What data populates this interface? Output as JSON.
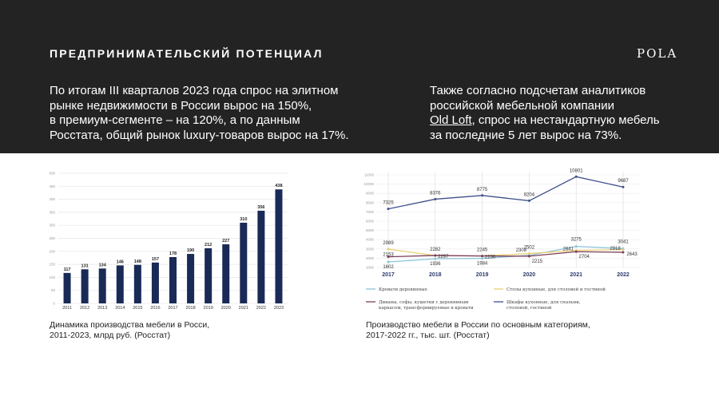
{
  "header": {
    "title": "ПРЕДПРИНИМАТЕЛЬСКИЙ ПОТЕНЦИАЛ",
    "logo": "POLA"
  },
  "intro": {
    "left_lines": [
      "По итогам III кварталов 2023 года спрос на элитном",
      "рынке недвижимости в России вырос на 150%,",
      "в премиум-сегменте – на 120%, а по данным",
      "Росстата, общий рынок luxury-товаров вырос на 17%."
    ],
    "right_line1": "Также согласно подсчетам аналитиков",
    "right_line2": "российской мебельной компании",
    "right_link": "Old Loft",
    "right_line3_rest": ", спрос на нестандартную мебель",
    "right_line4": "за последние 5 лет вырос на 73%."
  },
  "captions": {
    "left_line1": "Динамика производства мебели в Росси,",
    "left_line2": "2011-2023, млрд руб. (Росстат)",
    "right_line1": "Производство мебели в России по основным категориям,",
    "right_line2": "2017-2022 гг., тыс. шт. (Росстат)"
  },
  "colors": {
    "bar": "#1a2a57",
    "beds": "#8cc4dc",
    "tables": "#e9cf74",
    "sofas": "#7a3d5a",
    "wardrobes": "#3f4f8a"
  },
  "chart_data": [
    {
      "type": "bar",
      "title": "Динамика производства мебели в Росси, 2011-2023, млрд руб. (Росстат)",
      "categories": [
        "2011",
        "2012",
        "2013",
        "2014",
        "2015",
        "2016",
        "2017",
        "2018",
        "2019",
        "2020",
        "2021",
        "2022",
        "2023"
      ],
      "values": [
        117,
        131,
        134,
        146,
        148,
        157,
        178,
        190,
        212,
        227,
        310,
        356,
        438
      ],
      "ylim": [
        0,
        500
      ],
      "yticks": [
        0,
        50,
        100,
        150,
        200,
        250,
        300,
        350,
        400,
        450,
        500
      ],
      "xlabel": "",
      "ylabel": "",
      "grid": true
    },
    {
      "type": "line",
      "title": "Производство мебели в России по основным категориям, 2017-2022 гг., тыс. шт. (Росстат)",
      "x": [
        "2017",
        "2018",
        "2019",
        "2020",
        "2021",
        "2022"
      ],
      "ylim": [
        1000,
        11000
      ],
      "yticks": [
        1000,
        2000,
        3000,
        4000,
        5000,
        6000,
        7000,
        8000,
        9000,
        10000,
        11000
      ],
      "series": [
        {
          "name": "Кровати деревянные",
          "values": [
            1602,
            1936,
            1984,
            2308,
            3275,
            3041
          ],
          "labels": [
            "1602",
            "1936",
            "1984",
            "2308",
            "3275",
            "3041"
          ]
        },
        {
          "name": "Столы кухонные, для столовой и гостиной",
          "values": [
            2989,
            2282,
            2245,
            2502,
            2841,
            2918
          ],
          "labels": [
            "2989",
            "2282",
            "2245",
            "2502",
            "2841",
            "2918"
          ]
        },
        {
          "name": "Диваны, софы, кушетки с деревянным каркасом, трансформируемые в кровати",
          "values": [
            2153,
            2297,
            2236,
            2215,
            2704,
            2643
          ],
          "labels": [
            "2153",
            "2297",
            "2236",
            "2215",
            "2704",
            "2643"
          ]
        },
        {
          "name": "Шкафы кухонные, для спальни, столовой, гостиной",
          "values": [
            7325,
            8376,
            8775,
            8204,
            10801,
            9687
          ],
          "labels": [
            "7325",
            "8376",
            "8775",
            "8204",
            "10801",
            "9687"
          ]
        }
      ],
      "legend_rows": [
        [
          "Кровати деревянные"
        ],
        [
          "Столы кухонные, для столовой и гостиной"
        ],
        [
          "Диваны, софы, кушетки с деревянным",
          "каркасом, трансформируемые в кровати"
        ],
        [
          "Шкафы кухонные, для спальни,",
          "столовой, гостиной"
        ]
      ],
      "legend": "bottom"
    }
  ]
}
